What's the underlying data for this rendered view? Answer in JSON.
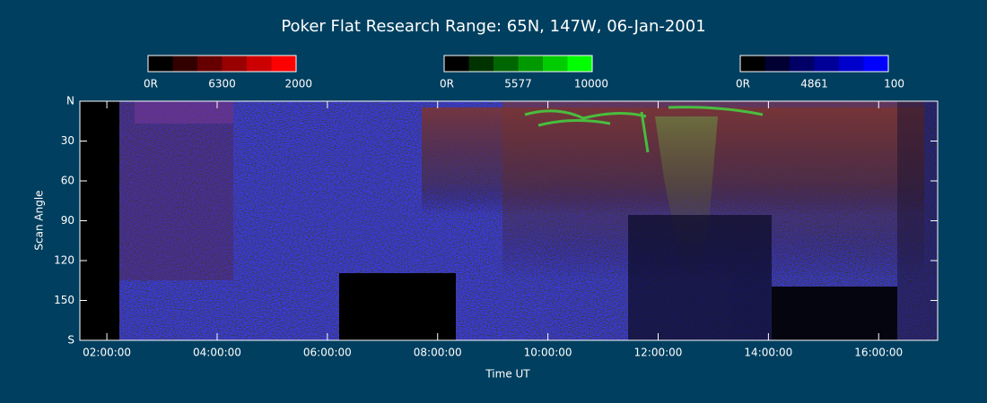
{
  "chart_data": {
    "type": "keogram",
    "title": "Poker Flat Research Range: 65N, 147W, 06-Jan-2001",
    "xlabel": "Time UT",
    "ylabel": "Scan Angle",
    "xlim": [
      1.51,
      17.07
    ],
    "xticks": [
      {
        "value": 2,
        "label": "02:00:00"
      },
      {
        "value": 4,
        "label": "04:00:00"
      },
      {
        "value": 6,
        "label": "06:00:00"
      },
      {
        "value": 8,
        "label": "08:00:00"
      },
      {
        "value": 10,
        "label": "10:00:00"
      },
      {
        "value": 12,
        "label": "12:00:00"
      },
      {
        "value": 14,
        "label": "14:00:00"
      },
      {
        "value": 16,
        "label": "16:00:00"
      }
    ],
    "ylim": [
      0,
      180
    ],
    "yticks": [
      {
        "value": 0,
        "label": "N"
      },
      30,
      60,
      90,
      120,
      150,
      {
        "value": 180,
        "label": "S"
      }
    ],
    "colorbars": [
      {
        "min_label": "0R",
        "wavelength": 6300,
        "max": 2000,
        "color": "#ff0000"
      },
      {
        "min_label": "0R",
        "wavelength": 5577,
        "max": 10000,
        "color": "#00ff00"
      },
      {
        "min_label": "0R",
        "wavelength": 4861,
        "max": 100,
        "color": "#0000ff"
      }
    ]
  }
}
